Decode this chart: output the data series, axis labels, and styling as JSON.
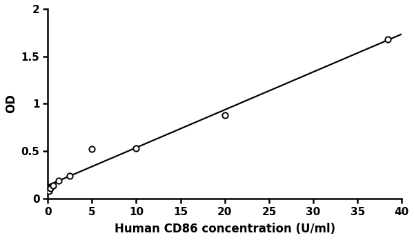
{
  "x_data": [
    0.16,
    0.31,
    0.63,
    1.25,
    2.5,
    5.0,
    10.0,
    20.0,
    38.4
  ],
  "y_data": [
    0.08,
    0.11,
    0.14,
    0.19,
    0.24,
    0.52,
    0.53,
    0.88,
    1.68
  ],
  "line_x": [
    0.0,
    40.0
  ],
  "line_y": [
    0.04,
    1.77
  ],
  "xlabel": "Human CD86 concentration (U/ml)",
  "ylabel": "OD",
  "xlim": [
    0,
    40
  ],
  "ylim": [
    0,
    2
  ],
  "xticks": [
    0,
    5,
    10,
    15,
    20,
    25,
    30,
    35,
    40
  ],
  "yticks": [
    0,
    0.5,
    1.0,
    1.5,
    2.0
  ],
  "ytick_labels": [
    "0",
    "0.5",
    "1",
    "1.5",
    "2"
  ],
  "line_color": "#000000",
  "marker_facecolor": "#ffffff",
  "marker_edgecolor": "#000000",
  "background_color": "#ffffff",
  "xlabel_fontsize": 12,
  "ylabel_fontsize": 12,
  "tick_fontsize": 11,
  "line_width": 1.6,
  "marker_size": 6,
  "marker_edge_width": 1.4
}
